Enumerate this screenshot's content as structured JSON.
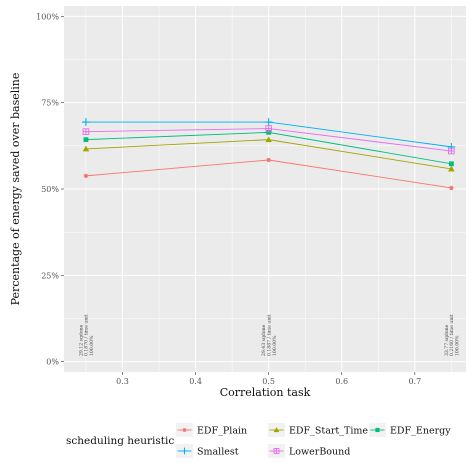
{
  "chart_data": {
    "type": "line",
    "xlabel": "Correlation task",
    "ylabel": "Percentage of energy saved over baseline",
    "x": [
      0.25,
      0.5,
      0.75
    ],
    "xlim": [
      0.22,
      0.77
    ],
    "ylim": [
      -0.03,
      1.03
    ],
    "xticks": [
      0.3,
      0.4,
      0.5,
      0.6,
      0.7
    ],
    "xtick_labels": [
      "0.3",
      "0.4",
      "0.5",
      "0.6",
      "0.7"
    ],
    "yticks": [
      0,
      0.25,
      0.5,
      0.75,
      1.0
    ],
    "ytick_labels": [
      "0%",
      "25%",
      "50%",
      "75%",
      "100%"
    ],
    "grid": true,
    "legend_title": "scheduling heuristic",
    "legend_position": "bottom",
    "series": [
      {
        "name": "EDF_Plain",
        "color": "#F8766D",
        "marker": "circle",
        "values": [
          0.538,
          0.584,
          0.503
        ]
      },
      {
        "name": "EDF_Start_Time",
        "color": "#A3A500",
        "marker": "triangle",
        "values": [
          0.616,
          0.643,
          0.558
        ]
      },
      {
        "name": "EDF_Energy",
        "color": "#00BF7D",
        "marker": "square",
        "values": [
          0.643,
          0.664,
          0.573
        ]
      },
      {
        "name": "Smallest",
        "color": "#00B0F6",
        "marker": "plus",
        "values": [
          0.694,
          0.694,
          0.622
        ]
      },
      {
        "name": "LowerBound",
        "color": "#E76BF3",
        "marker": "boxplus",
        "values": [
          0.666,
          0.675,
          0.61
        ]
      }
    ],
    "annotations": [
      {
        "x": 0.25,
        "lines": [
          "29.12 sqdone",
          "0.1870 / time unit",
          "100.00%"
        ]
      },
      {
        "x": 0.5,
        "lines": [
          "29.43 sqdone",
          "0.1887 / time unit",
          "100.00%"
        ]
      },
      {
        "x": 0.75,
        "lines": [
          "33.77 sqdone",
          "0.2160 / time unit",
          "100.00%"
        ]
      }
    ]
  }
}
